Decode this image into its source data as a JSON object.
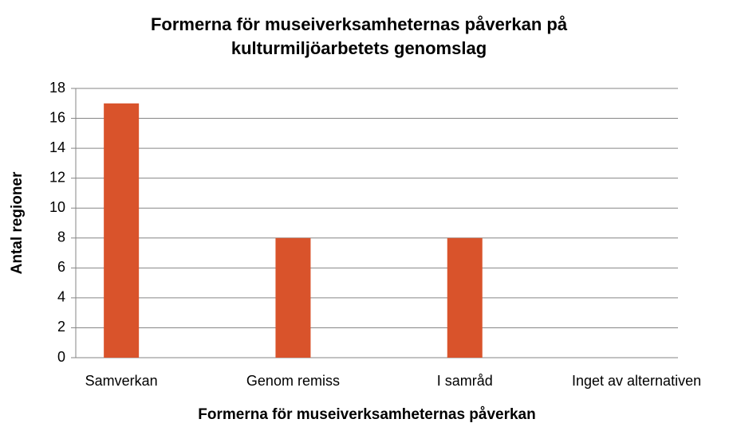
{
  "chart_data": {
    "type": "bar",
    "title": "Formerna för museiverksamheternas påverkan på kulturmiljöarbetets genomslag",
    "x_label": "Formerna för museiverksamheternas påverkan",
    "y_label": "Antal regioner",
    "categories": [
      "Samverkan",
      "Genom remiss",
      "I samråd",
      "Inget av alternativen"
    ],
    "values": [
      17,
      8,
      8,
      0
    ],
    "color": "#d9532b",
    "ylim": [
      0,
      18
    ],
    "yticks": [
      0,
      2,
      4,
      6,
      8,
      10,
      12,
      14,
      16,
      18
    ],
    "grid": true
  }
}
